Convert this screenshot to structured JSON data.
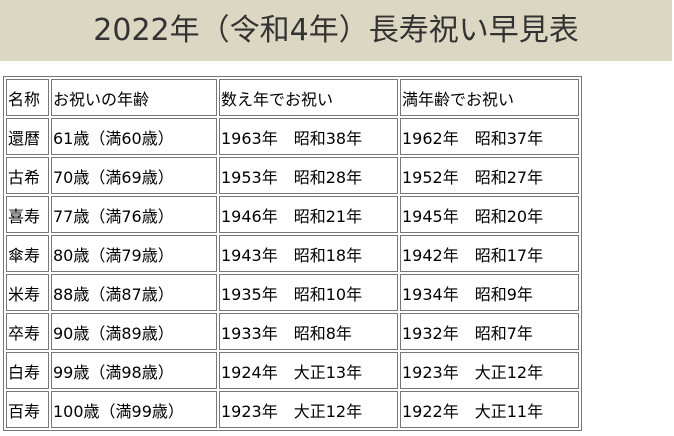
{
  "title": "2022年（令和4年）長寿祝い早見表",
  "colors": {
    "title_bg": "#dcd7c2",
    "title_text": "#333333",
    "border": "#777777"
  },
  "table": {
    "headers": [
      "名称",
      "お祝いの年齢",
      "数え年でお祝い",
      "満年齢でお祝い"
    ],
    "rows": [
      [
        "還暦",
        "61歳（満60歳）",
        "1963年　昭和38年",
        "1962年　昭和37年"
      ],
      [
        "古希",
        "70歳（満69歳）",
        "1953年　昭和28年",
        "1952年　昭和27年"
      ],
      [
        "喜寿",
        "77歳（満76歳）",
        "1946年　昭和21年",
        "1945年　昭和20年"
      ],
      [
        "傘寿",
        "80歳（満79歳）",
        "1943年　昭和18年",
        "1942年　昭和17年"
      ],
      [
        "米寿",
        "88歳（満87歳）",
        "1935年　昭和10年",
        "1934年　昭和9年"
      ],
      [
        "卒寿",
        "90歳（満89歳）",
        "1933年　昭和8年",
        "1932年　昭和7年"
      ],
      [
        "白寿",
        "99歳（満98歳）",
        "1924年　大正13年",
        "1923年　大正12年"
      ],
      [
        "百寿",
        "100歳（満99歳）",
        "1923年　大正12年",
        "1922年　大正11年"
      ]
    ]
  }
}
